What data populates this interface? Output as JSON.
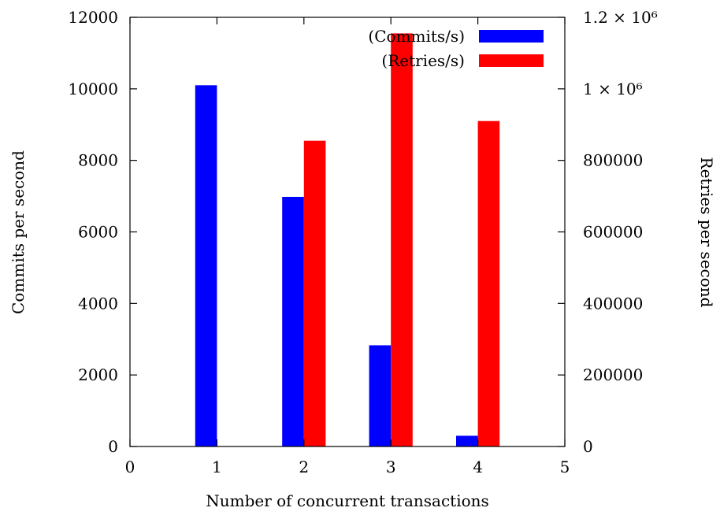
{
  "chart_data": {
    "type": "bar",
    "x": [
      1,
      2,
      3,
      4
    ],
    "xlabel": "Number of concurrent transactions",
    "ylabel": "Commits per second",
    "y2label": "Retries per second",
    "xlim": [
      0,
      5
    ],
    "ylim": [
      0,
      12000
    ],
    "y2lim": [
      0,
      1200000
    ],
    "x_ticks": [
      "0",
      "1",
      "2",
      "3",
      "4",
      "5"
    ],
    "y_ticks": [
      "0",
      "2000",
      "4000",
      "6000",
      "8000",
      "10000",
      "12000"
    ],
    "y2_ticks": [
      "0",
      "200000",
      "400000",
      "600000",
      "800000",
      "1 × 10⁶",
      "1.2 × 10⁶"
    ],
    "grid": false,
    "legend_position": "top-right",
    "series": [
      {
        "name": "(Commits/s)",
        "axis": "left",
        "color": "#0000ff",
        "values": [
          10100,
          6980,
          2830,
          300
        ]
      },
      {
        "name": "(Retries/s)",
        "axis": "right",
        "color": "#ff0000",
        "values": [
          0,
          855000,
          1155000,
          910000
        ]
      }
    ]
  }
}
